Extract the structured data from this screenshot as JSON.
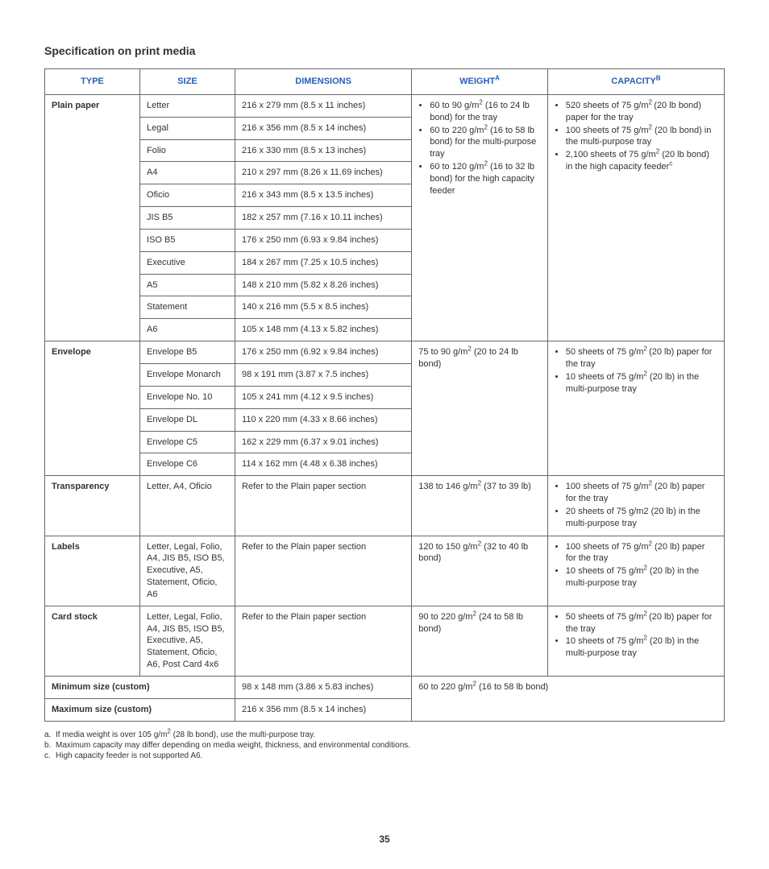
{
  "title": "Specification on print media",
  "headers": {
    "type": "TYPE",
    "size": "SIZE",
    "dimensions": "DIMENSIONS",
    "weight": "WEIGHT",
    "weight_sup": "A",
    "capacity": "CAPACITY",
    "capacity_sup": "B"
  },
  "plain": {
    "type": "Plain paper",
    "rows": [
      {
        "size": "Letter",
        "dim": "216 x 279 mm (8.5 x 11 inches)"
      },
      {
        "size": "Legal",
        "dim": "216 x 356 mm (8.5 x 14 inches)"
      },
      {
        "size": "Folio",
        "dim": "216 x 330 mm (8.5 x 13 inches)"
      },
      {
        "size": "A4",
        "dim": "210 x 297 mm (8.26 x 11.69 inches)"
      },
      {
        "size": "Oficio",
        "dim": "216 x 343 mm (8.5 x 13.5 inches)"
      },
      {
        "size": "JIS B5",
        "dim": "182 x 257 mm (7.16 x 10.11 inches)"
      },
      {
        "size": "ISO B5",
        "dim": "176 x 250 mm (6.93 x 9.84 inches)"
      },
      {
        "size": "Executive",
        "dim": "184 x 267 mm (7.25 x 10.5 inches)"
      },
      {
        "size": "A5",
        "dim": "148 x 210 mm (5.82 x 8.26 inches)"
      },
      {
        "size": "Statement",
        "dim": "140 x 216 mm (5.5 x 8.5 inches)"
      },
      {
        "size": "A6",
        "dim": "105 x 148 mm (4.13 x 5.82 inches)"
      }
    ],
    "weight": {
      "b1a": "60 to 90 g/m",
      "b1b": " (16 to 24 lb bond) for the tray",
      "b2a": "60 to 220 g/m",
      "b2b": " (16 to 58 lb bond) for the multi-purpose tray",
      "b3a": "60 to 120 g/m",
      "b3b": " (16 to 32 lb bond) for the high capacity feeder"
    },
    "capacity": {
      "b1a": "520 sheets of 75 g/m",
      "b1b": " (20 lb bond) paper for the tray",
      "b2a": "100 sheets of 75 g/m",
      "b2b": " (20 lb bond) in the multi-purpose tray",
      "b3a": "2,100 sheets of 75 g/m",
      "b3b": " (20 lb bond) in the high capacity feeder",
      "b3sup": "c"
    }
  },
  "envelope": {
    "type": "Envelope",
    "rows": [
      {
        "size": "Envelope B5",
        "dim": "176 x 250 mm (6.92 x 9.84 inches)"
      },
      {
        "size": "Envelope Monarch",
        "dim": "98 x 191 mm (3.87 x 7.5 inches)"
      },
      {
        "size": "Envelope No. 10",
        "dim": "105 x 241 mm (4.12 x 9.5 inches)"
      },
      {
        "size": "Envelope DL",
        "dim": "110 x 220 mm (4.33 x 8.66 inches)"
      },
      {
        "size": "Envelope C5",
        "dim": "162 x 229 mm (6.37 x 9.01 inches)"
      },
      {
        "size": "Envelope C6",
        "dim": "114 x 162 mm (4.48 x 6.38 inches)"
      }
    ],
    "weight": {
      "a": "75 to 90 g/m",
      "b": " (20 to 24 lb bond)"
    },
    "capacity": {
      "b1a": "50 sheets of 75 g/m",
      "b1b": " (20 lb) paper for the tray",
      "b2a": "10 sheets of 75 g/m",
      "b2b": " (20 lb) in the multi-purpose tray"
    }
  },
  "transparency": {
    "type": "Transparency",
    "size": "Letter, A4, Oficio",
    "dim": "Refer to the Plain paper section",
    "weight": {
      "a": "138 to 146 g/m",
      "b": " (37 to 39 lb)"
    },
    "capacity": {
      "b1a": "100 sheets of 75 g/m",
      "b1b": " (20 lb) paper for the tray",
      "b2": "20 sheets of 75 g/m2 (20 lb) in the multi-purpose tray"
    }
  },
  "labels": {
    "type": "Labels",
    "size": "Letter, Legal, Folio, A4, JIS B5, ISO B5, Executive, A5, Statement, Oficio, A6",
    "dim": "Refer to the Plain paper section",
    "weight": {
      "a": "120 to 150 g/m",
      "b": " (32 to 40 lb bond)"
    },
    "capacity": {
      "b1a": "100 sheets of 75 g/m",
      "b1b": " (20 lb) paper for the tray",
      "b2a": "10 sheets of 75 g/m",
      "b2b": " (20 lb) in the multi-purpose tray"
    }
  },
  "cardstock": {
    "type": "Card stock",
    "size": "Letter, Legal, Folio, A4, JIS B5, ISO B5, Executive, A5, Statement, Oficio, A6, Post Card 4x6",
    "dim": "Refer to the Plain paper section",
    "weight": {
      "a": "90 to 220 g/m",
      "b": " (24 to 58 lb bond)"
    },
    "capacity": {
      "b1a": "50 sheets of 75 g/m",
      "b1b": " (20 lb) paper for the tray",
      "b2a": "10 sheets of 75 g/m",
      "b2b": " (20 lb) in the multi-purpose tray"
    }
  },
  "min": {
    "label": "Minimum size (custom)",
    "dim": "98 x 148 mm (3.86 x 5.83 inches)",
    "weight": {
      "a": "60 to 220 g/m",
      "b": " (16 to 58 lb bond)"
    }
  },
  "max": {
    "label": "Maximum size (custom)",
    "dim": "216 x 356 mm (8.5 x 14 inches)"
  },
  "footnotes": {
    "a": {
      "mark": "a.",
      "pre": "If media weight is over 105 g/m",
      "post": " (28 lb bond), use the multi-purpose tray."
    },
    "b": {
      "mark": "b.",
      "text": "Maximum capacity may differ depending on media weight, thickness, and environmental conditions."
    },
    "c": {
      "mark": "c.",
      "text": "High capacity feeder is not supported A6."
    }
  },
  "pagenum": "35"
}
